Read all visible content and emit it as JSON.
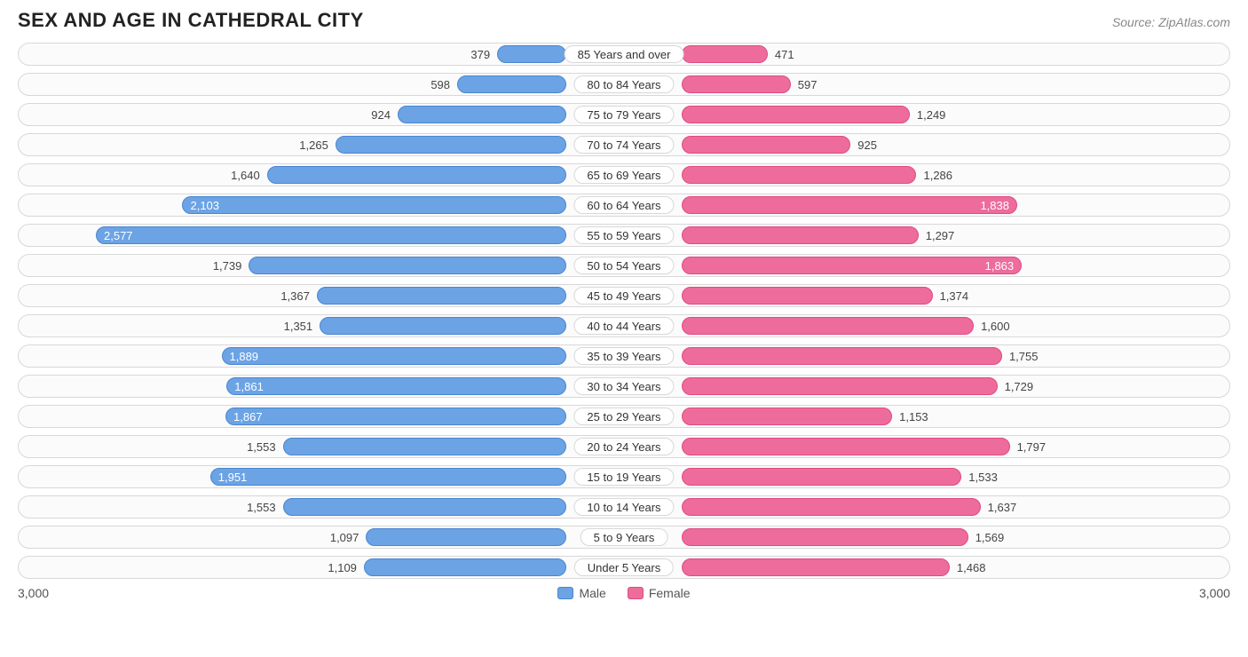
{
  "title": "SEX AND AGE IN CATHEDRAL CITY",
  "source": "Source: ZipAtlas.com",
  "axis_max": 3000,
  "axis_max_label": "3,000",
  "colors": {
    "male": "#6ba3e5",
    "male_border": "#4a86d0",
    "female": "#ed6c9b",
    "female_border": "#e04a82",
    "row_border": "#d8d8d8",
    "row_bg": "#fbfbfb",
    "text": "#444444",
    "text_inside": "#ffffff"
  },
  "value_inside_threshold": 1800,
  "legend": {
    "male": "Male",
    "female": "Female"
  },
  "rows": [
    {
      "age": "85 Years and over",
      "male": 379,
      "male_label": "379",
      "female": 471,
      "female_label": "471"
    },
    {
      "age": "80 to 84 Years",
      "male": 598,
      "male_label": "598",
      "female": 597,
      "female_label": "597"
    },
    {
      "age": "75 to 79 Years",
      "male": 924,
      "male_label": "924",
      "female": 1249,
      "female_label": "1,249"
    },
    {
      "age": "70 to 74 Years",
      "male": 1265,
      "male_label": "1,265",
      "female": 925,
      "female_label": "925"
    },
    {
      "age": "65 to 69 Years",
      "male": 1640,
      "male_label": "1,640",
      "female": 1286,
      "female_label": "1,286"
    },
    {
      "age": "60 to 64 Years",
      "male": 2103,
      "male_label": "2,103",
      "female": 1838,
      "female_label": "1,838"
    },
    {
      "age": "55 to 59 Years",
      "male": 2577,
      "male_label": "2,577",
      "female": 1297,
      "female_label": "1,297"
    },
    {
      "age": "50 to 54 Years",
      "male": 1739,
      "male_label": "1,739",
      "female": 1863,
      "female_label": "1,863"
    },
    {
      "age": "45 to 49 Years",
      "male": 1367,
      "male_label": "1,367",
      "female": 1374,
      "female_label": "1,374"
    },
    {
      "age": "40 to 44 Years",
      "male": 1351,
      "male_label": "1,351",
      "female": 1600,
      "female_label": "1,600"
    },
    {
      "age": "35 to 39 Years",
      "male": 1889,
      "male_label": "1,889",
      "female": 1755,
      "female_label": "1,755"
    },
    {
      "age": "30 to 34 Years",
      "male": 1861,
      "male_label": "1,861",
      "female": 1729,
      "female_label": "1,729"
    },
    {
      "age": "25 to 29 Years",
      "male": 1867,
      "male_label": "1,867",
      "female": 1153,
      "female_label": "1,153"
    },
    {
      "age": "20 to 24 Years",
      "male": 1553,
      "male_label": "1,553",
      "female": 1797,
      "female_label": "1,797"
    },
    {
      "age": "15 to 19 Years",
      "male": 1951,
      "male_label": "1,951",
      "female": 1533,
      "female_label": "1,533"
    },
    {
      "age": "10 to 14 Years",
      "male": 1553,
      "male_label": "1,553",
      "female": 1637,
      "female_label": "1,637"
    },
    {
      "age": "5 to 9 Years",
      "male": 1097,
      "male_label": "1,097",
      "female": 1569,
      "female_label": "1,569"
    },
    {
      "age": "Under 5 Years",
      "male": 1109,
      "male_label": "1,109",
      "female": 1468,
      "female_label": "1,468"
    }
  ]
}
